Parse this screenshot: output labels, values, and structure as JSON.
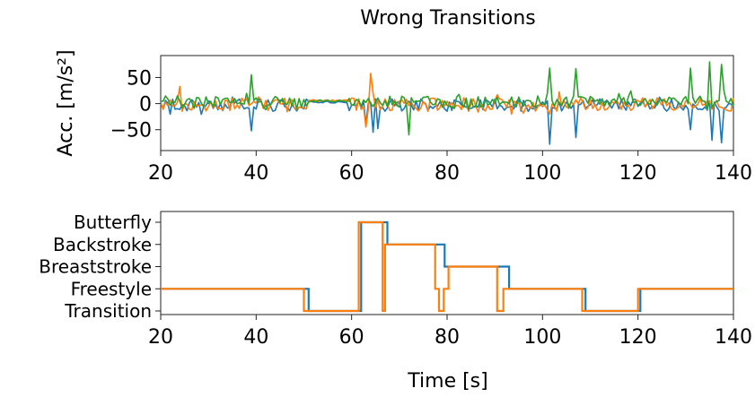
{
  "chart_data": [
    {
      "type": "line",
      "title": "Wrong Transitions",
      "xlabel": "",
      "ylabel": "Acc. [m/s²]",
      "xlim": [
        20,
        140
      ],
      "ylim": [
        -90,
        92
      ],
      "xticks": [
        20,
        40,
        60,
        80,
        100,
        120,
        140
      ],
      "yticks": [
        50,
        0,
        -50
      ],
      "ytick_labels": [
        "50",
        "0",
        "−50"
      ],
      "grid": false,
      "series": [
        {
          "color": "#1f77b4",
          "baseline": -3,
          "noise": 12,
          "quiet_intervals": [
            [
              51,
              59
            ]
          ],
          "quiet_level": 3,
          "spikes": [
            [
              39,
              -52
            ],
            [
              63,
              -40
            ],
            [
              64.5,
              -55
            ],
            [
              65.5,
              -48
            ],
            [
              101.5,
              -78
            ],
            [
              107,
              -65
            ],
            [
              131,
              -50
            ],
            [
              135.5,
              -70
            ],
            [
              137.5,
              -75
            ]
          ]
        },
        {
          "color": "#ff7f0e",
          "baseline": -2,
          "noise": 13,
          "quiet_intervals": [
            [
              51,
              59
            ]
          ],
          "quiet_level": 6,
          "spikes": [
            [
              24,
              33
            ],
            [
              63,
              -45
            ],
            [
              64.2,
              58
            ],
            [
              101.5,
              -20
            ]
          ]
        },
        {
          "color": "#2ca02c",
          "baseline": 4,
          "noise": 11,
          "quiet_intervals": [
            [
              51,
              59
            ]
          ],
          "quiet_level": 5,
          "spikes": [
            [
              39,
              55
            ],
            [
              72,
              -60
            ],
            [
              101.5,
              68
            ],
            [
              107,
              67
            ],
            [
              131,
              68
            ],
            [
              135.2,
              80
            ],
            [
              137.4,
              75
            ]
          ]
        }
      ]
    },
    {
      "type": "line",
      "title": "",
      "xlabel": "Time [s]",
      "ylabel": "",
      "xlim": [
        20,
        140
      ],
      "xticks": [
        20,
        40,
        60,
        80,
        100,
        120,
        140
      ],
      "categories": [
        "Transition",
        "Freestyle",
        "Breaststroke",
        "Backstroke",
        "Butterfly"
      ],
      "grid": false,
      "series": [
        {
          "color": "#1f77b4",
          "x": [
            20,
            51,
            51,
            62,
            62,
            67.5,
            67.5,
            79.5,
            79.5,
            93,
            93,
            109,
            109,
            120.5,
            120.5,
            140
          ],
          "y": [
            1,
            1,
            0,
            0,
            4,
            4,
            3,
            3,
            2,
            2,
            1,
            1,
            0,
            0,
            1,
            1
          ]
        },
        {
          "color": "#ff7f0e",
          "x": [
            20,
            50,
            50,
            61.5,
            61.5,
            66.5,
            66.5,
            67,
            67,
            77.5,
            77.5,
            78.3,
            78.3,
            79.3,
            79.3,
            80.3,
            80.3,
            90.5,
            90.5,
            91.8,
            91.8,
            108.3,
            108.3,
            120,
            120,
            140
          ],
          "y": [
            1,
            1,
            0,
            0,
            4,
            4,
            0,
            0,
            3,
            3,
            1,
            1,
            0,
            0,
            1,
            1,
            2,
            2,
            0,
            0,
            1,
            1,
            0,
            0,
            1,
            1
          ]
        }
      ]
    }
  ]
}
